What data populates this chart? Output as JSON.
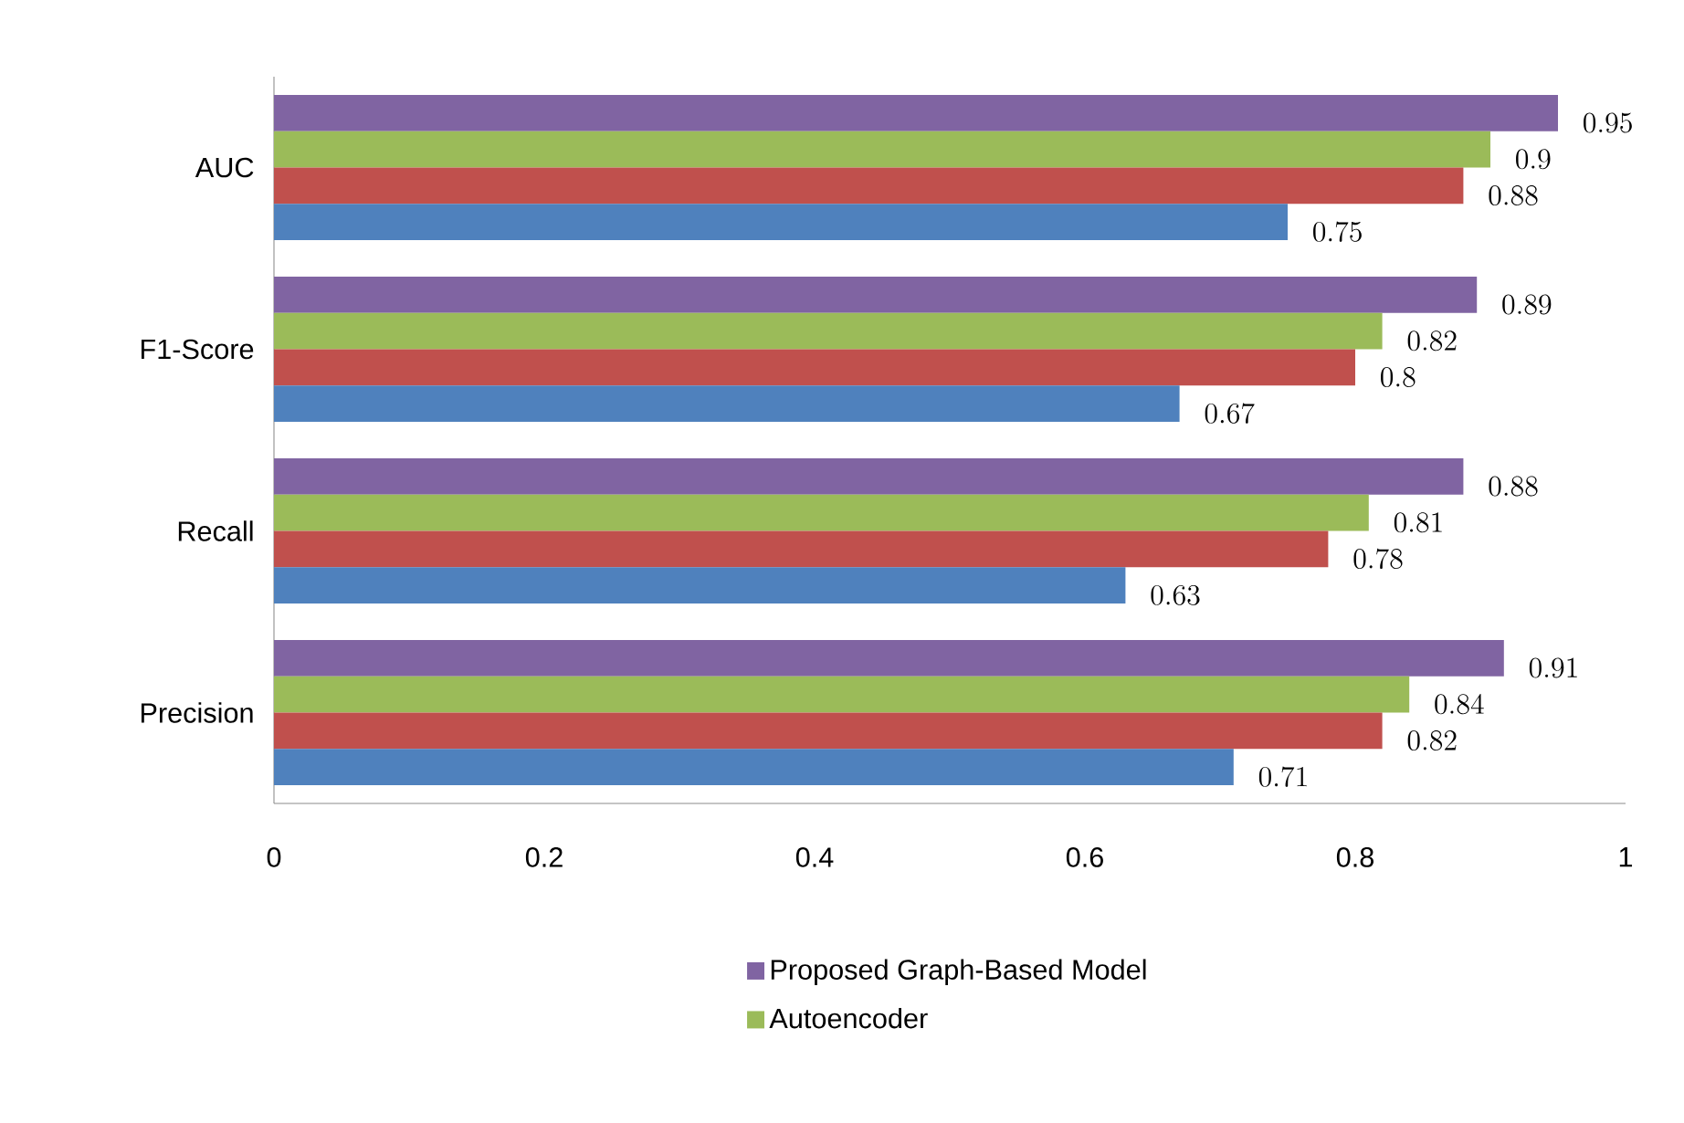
{
  "chart_data": {
    "type": "bar",
    "orientation": "horizontal",
    "categories": [
      "AUC",
      "F1-Score",
      "Recall",
      "Precision"
    ],
    "series": [
      {
        "name": "Proposed Graph-Based Model",
        "color": "#8064a2",
        "values": [
          0.95,
          0.89,
          0.88,
          0.91
        ]
      },
      {
        "name": "Autoencoder",
        "color": "#9bbb59",
        "values": [
          0.9,
          0.82,
          0.81,
          0.84
        ]
      },
      {
        "color": "#c0504d",
        "values": [
          0.88,
          0.8,
          0.78,
          0.82
        ]
      },
      {
        "color": "#4f81bd",
        "values": [
          0.75,
          0.67,
          0.63,
          0.71
        ]
      }
    ],
    "xlim": [
      0,
      1
    ],
    "xticks": [
      0,
      0.2,
      0.4,
      0.6,
      0.8,
      1
    ],
    "data_labels": true,
    "legend": "bottom",
    "grid": false
  }
}
